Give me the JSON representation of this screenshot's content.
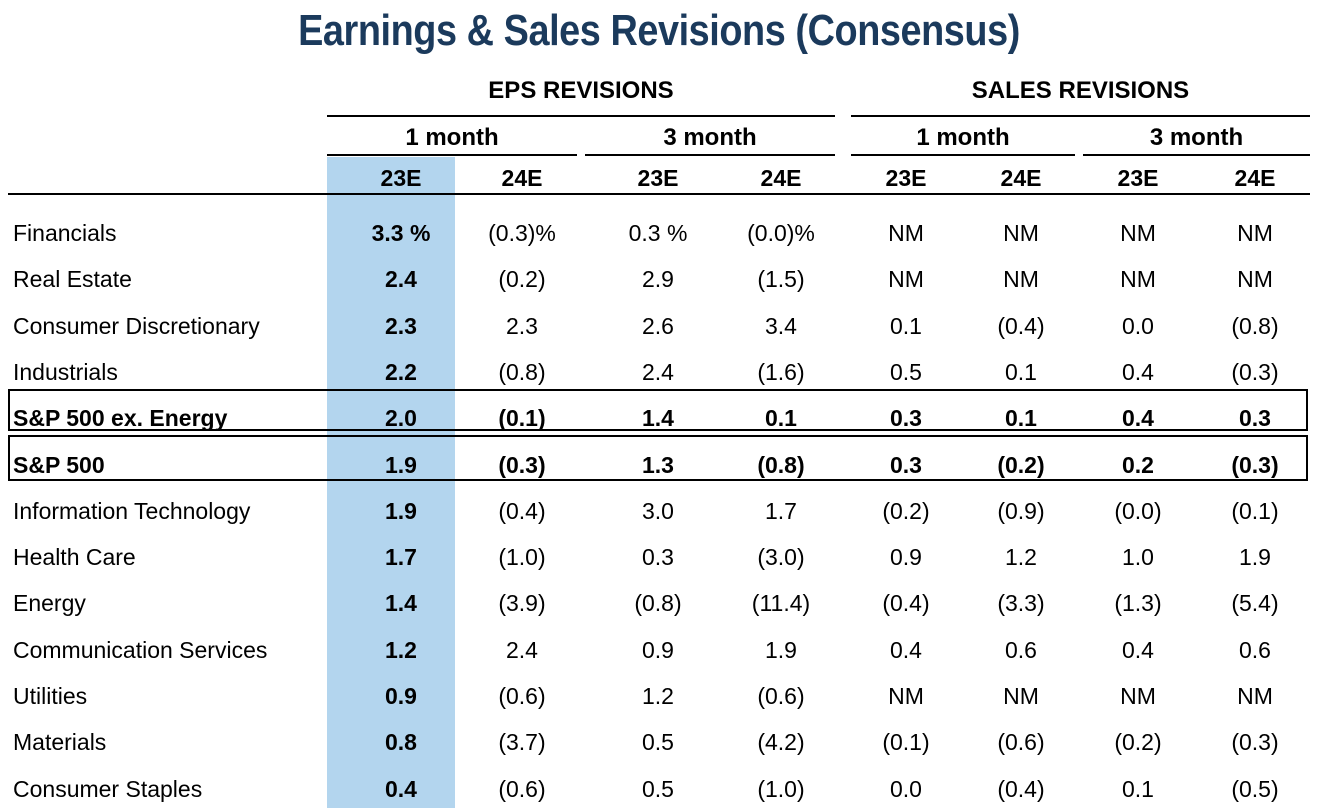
{
  "chart_data": {
    "type": "table",
    "title": "Earnings & Sales Revisions (Consensus)",
    "groups": [
      "EPS REVISIONS",
      "SALES REVISIONS"
    ],
    "periods": [
      "1 month",
      "3 month",
      "1 month",
      "3 month"
    ],
    "columns": [
      "23E",
      "24E",
      "23E",
      "24E",
      "23E",
      "24E",
      "23E",
      "24E"
    ],
    "rows": [
      {
        "label": "Financials",
        "values": [
          "3.3 %",
          "(0.3)%",
          "0.3 %",
          "(0.0)%",
          "NM",
          "NM",
          "NM",
          "NM"
        ]
      },
      {
        "label": "Real Estate",
        "values": [
          "2.4",
          "(0.2)",
          "2.9",
          "(1.5)",
          "NM",
          "NM",
          "NM",
          "NM"
        ]
      },
      {
        "label": "Consumer Discretionary",
        "values": [
          "2.3",
          "2.3",
          "2.6",
          "3.4",
          "0.1",
          "(0.4)",
          "0.0",
          "(0.8)"
        ]
      },
      {
        "label": "Industrials",
        "values": [
          "2.2",
          "(0.8)",
          "2.4",
          "(1.6)",
          "0.5",
          "0.1",
          "0.4",
          "(0.3)"
        ]
      },
      {
        "label": "S&P 500 ex. Energy",
        "values": [
          "2.0",
          "(0.1)",
          "1.4",
          "0.1",
          "0.3",
          "0.1",
          "0.4",
          "0.3"
        ],
        "emphasis": true
      },
      {
        "label": "S&P 500",
        "values": [
          "1.9",
          "(0.3)",
          "1.3",
          "(0.8)",
          "0.3",
          "(0.2)",
          "0.2",
          "(0.3)"
        ],
        "emphasis": true
      },
      {
        "label": "Information Technology",
        "values": [
          "1.9",
          "(0.4)",
          "3.0",
          "1.7",
          "(0.2)",
          "(0.9)",
          "(0.0)",
          "(0.1)"
        ]
      },
      {
        "label": "Health Care",
        "values": [
          "1.7",
          "(1.0)",
          "0.3",
          "(3.0)",
          "0.9",
          "1.2",
          "1.0",
          "1.9"
        ]
      },
      {
        "label": "Energy",
        "values": [
          "1.4",
          "(3.9)",
          "(0.8)",
          "(11.4)",
          "(0.4)",
          "(3.3)",
          "(1.3)",
          "(5.4)"
        ]
      },
      {
        "label": "Communication Services",
        "values": [
          "1.2",
          "2.4",
          "0.9",
          "1.9",
          "0.4",
          "0.6",
          "0.4",
          "0.6"
        ]
      },
      {
        "label": "Utilities",
        "values": [
          "0.9",
          "(0.6)",
          "1.2",
          "(0.6)",
          "NM",
          "NM",
          "NM",
          "NM"
        ]
      },
      {
        "label": "Materials",
        "values": [
          "0.8",
          "(3.7)",
          "0.5",
          "(4.2)",
          "(0.1)",
          "(0.6)",
          "(0.2)",
          "(0.3)"
        ]
      },
      {
        "label": "Consumer Staples",
        "values": [
          "0.4",
          "(0.6)",
          "0.5",
          "(1.0)",
          "0.0",
          "(0.4)",
          "0.1",
          "(0.5)"
        ]
      }
    ],
    "colors": {
      "title": "#1b3a5c",
      "highlight": "#b3d5ee"
    }
  }
}
